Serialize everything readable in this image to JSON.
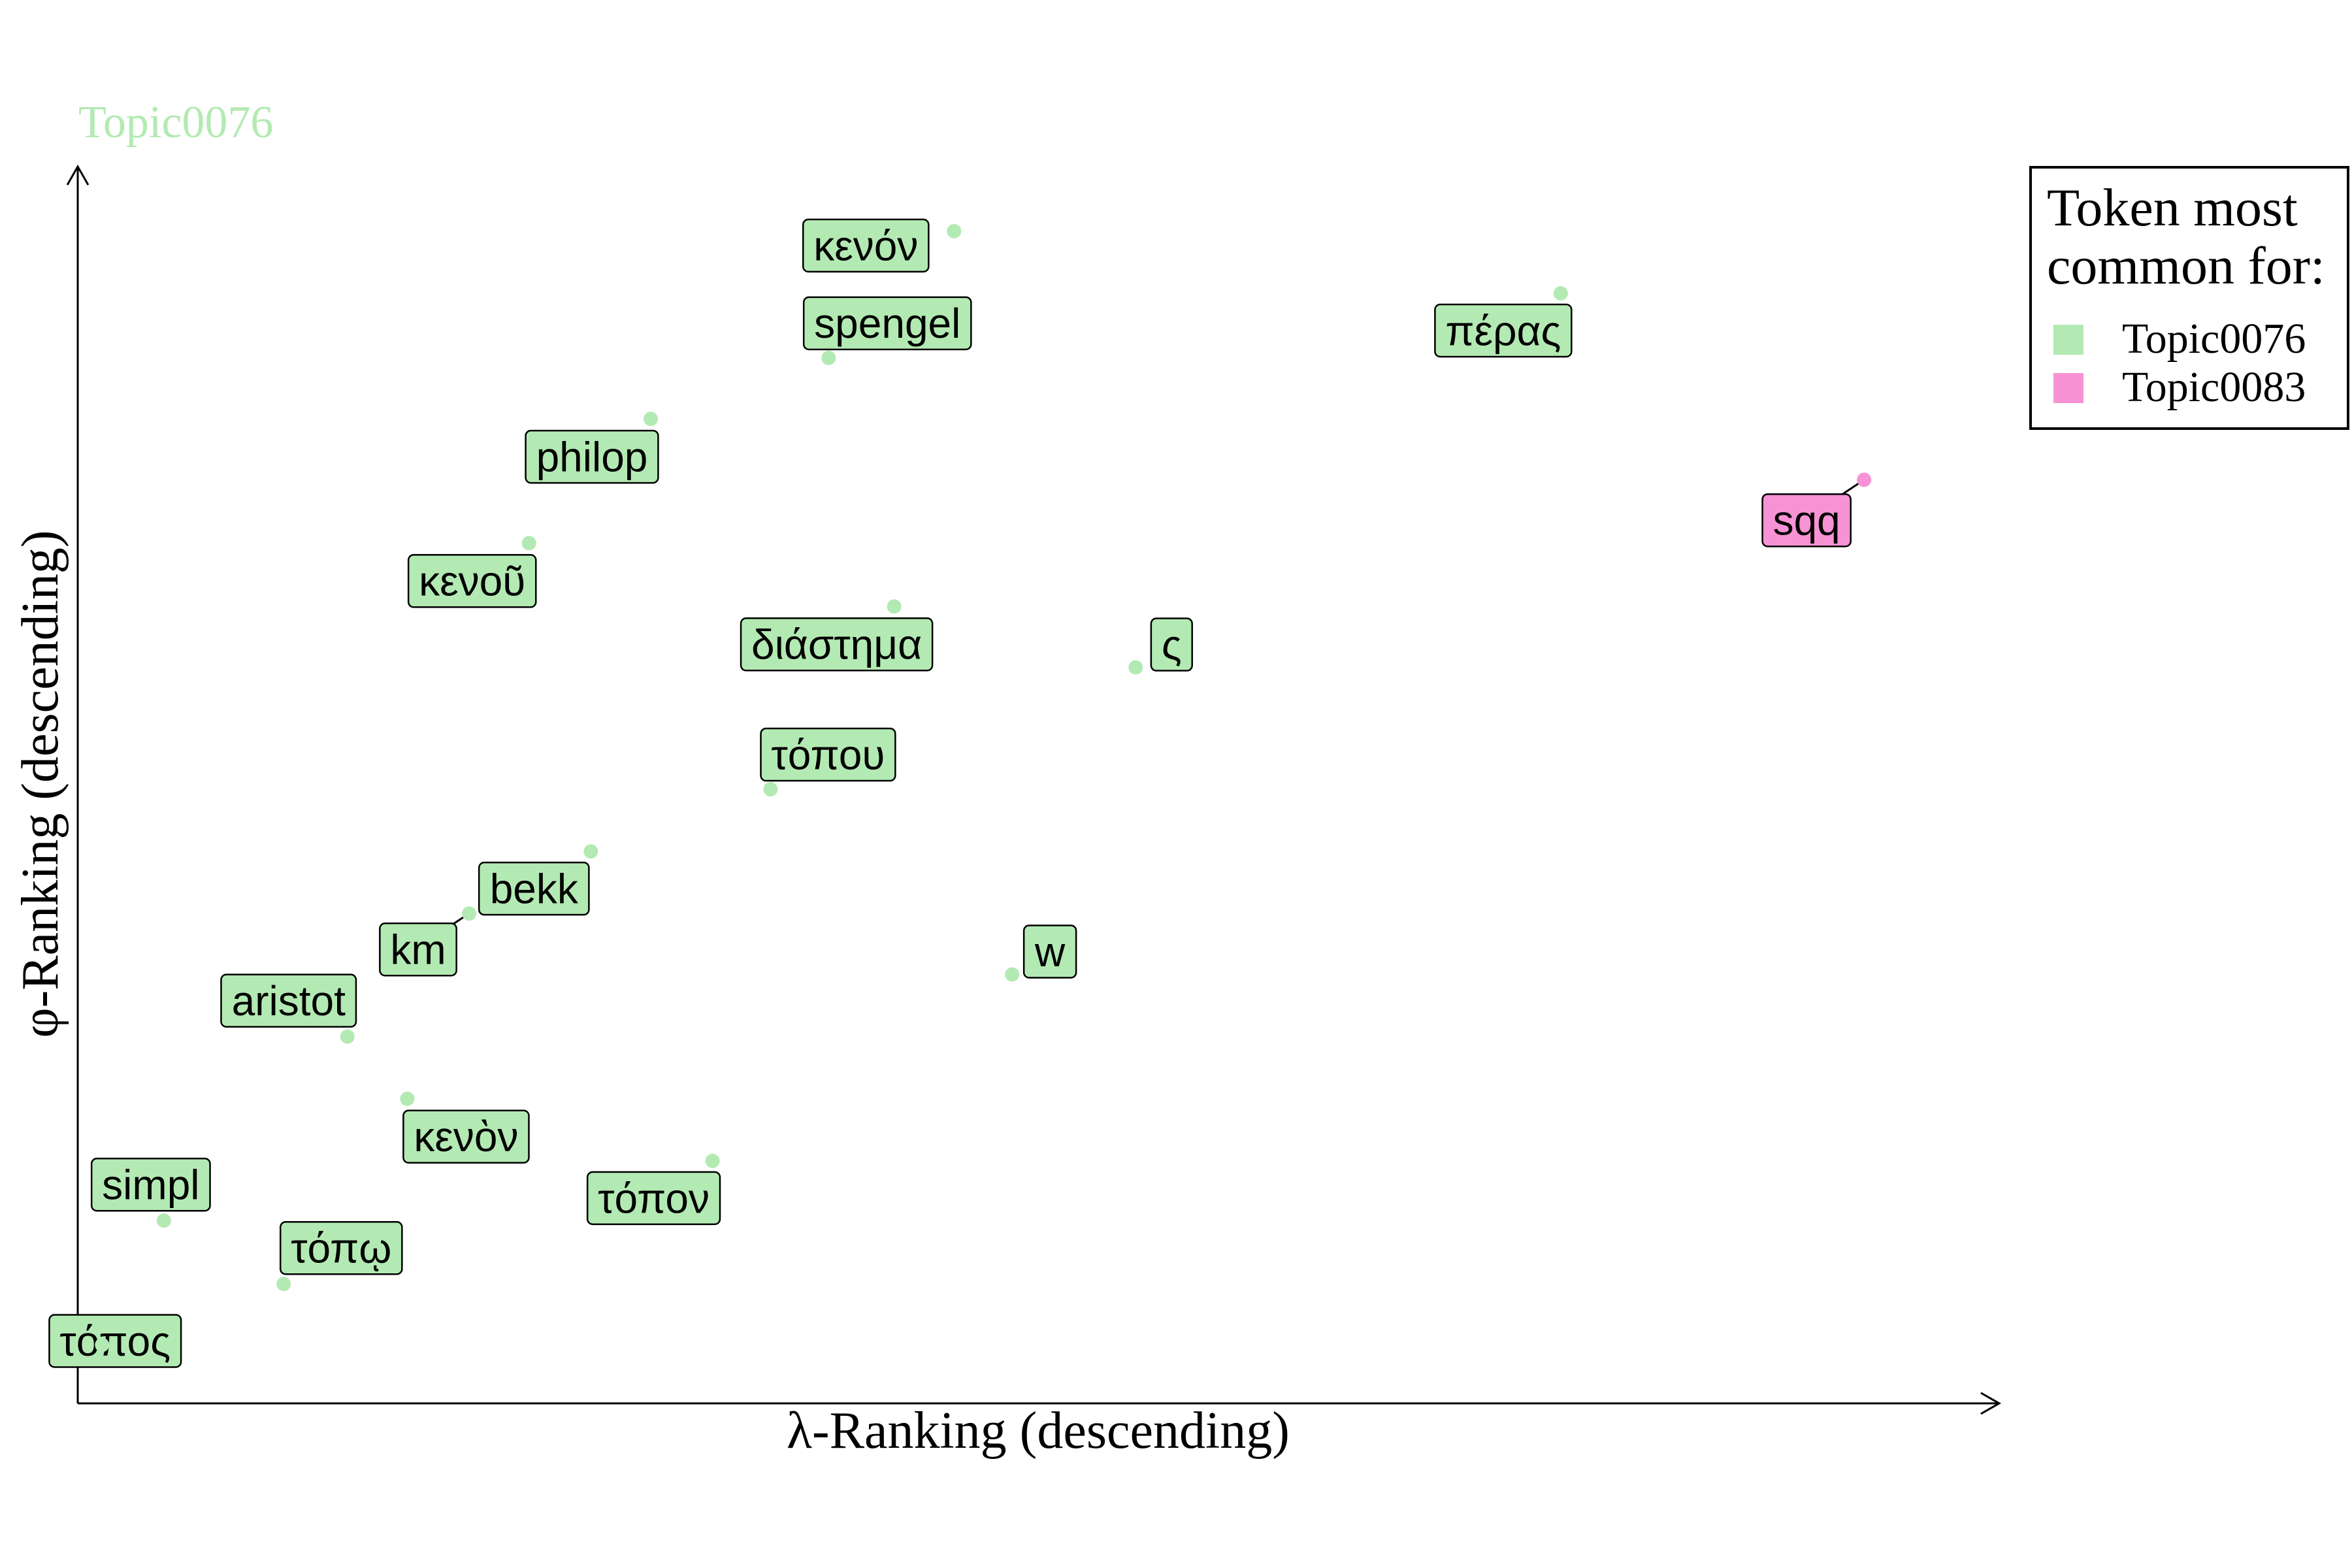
{
  "chart_data": {
    "type": "scatter",
    "title": "Topic0076",
    "xlabel": "λ-Ranking (descending)",
    "ylabel": "φ-Ranking (descending)",
    "legend": {
      "title_line1": "Token most",
      "title_line2": "common for:",
      "placement": "top-right",
      "entries": [
        {
          "name": "Topic0076",
          "color": "#b3eab3"
        },
        {
          "name": "Topic0083",
          "color": "#f792d4"
        }
      ]
    },
    "axis_ticks": "none",
    "xlim": [
      0,
      1
    ],
    "ylim": [
      0,
      1
    ],
    "points": [
      {
        "label": "κενόν",
        "x": 0.468,
        "y": 0.962,
        "group": "Topic0076"
      },
      {
        "label": "spengel",
        "x": 0.401,
        "y": 0.858,
        "group": "Topic0076"
      },
      {
        "label": "πέρας",
        "x": 0.792,
        "y": 0.911,
        "group": "Topic0076"
      },
      {
        "label": "philop",
        "x": 0.306,
        "y": 0.808,
        "group": "Topic0076"
      },
      {
        "label": "sqq",
        "x": 0.954,
        "y": 0.758,
        "group": "Topic0083"
      },
      {
        "label": "κενοῦ",
        "x": 0.241,
        "y": 0.706,
        "group": "Topic0076"
      },
      {
        "label": "διάστημα",
        "x": 0.436,
        "y": 0.654,
        "group": "Topic0076"
      },
      {
        "label": "ς",
        "x": 0.565,
        "y": 0.604,
        "group": "Topic0076"
      },
      {
        "label": "τόπου",
        "x": 0.37,
        "y": 0.504,
        "group": "Topic0076"
      },
      {
        "label": "bekk",
        "x": 0.274,
        "y": 0.453,
        "group": "Topic0076"
      },
      {
        "label": "km",
        "x": 0.209,
        "y": 0.402,
        "group": "Topic0076"
      },
      {
        "label": "w",
        "x": 0.499,
        "y": 0.352,
        "group": "Topic0076"
      },
      {
        "label": "aristot",
        "x": 0.144,
        "y": 0.301,
        "group": "Topic0076"
      },
      {
        "label": "κενὸν",
        "x": 0.176,
        "y": 0.25,
        "group": "Topic0076"
      },
      {
        "label": "τόπον",
        "x": 0.339,
        "y": 0.199,
        "group": "Topic0076"
      },
      {
        "label": "simpl",
        "x": 0.046,
        "y": 0.15,
        "group": "Topic0076"
      },
      {
        "label": "τόπῳ",
        "x": 0.11,
        "y": 0.098,
        "group": "Topic0076"
      },
      {
        "label": "τόπος",
        "x": 0.013,
        "y": 0.048,
        "group": "Topic0076"
      }
    ]
  }
}
